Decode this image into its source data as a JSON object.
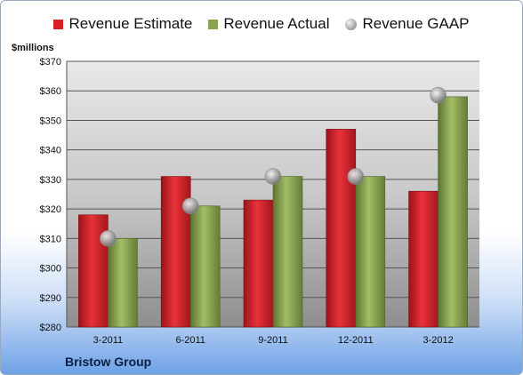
{
  "chart_data": {
    "type": "bar",
    "categories": [
      "3-2011",
      "6-2011",
      "9-2011",
      "12-2011",
      "3-2012"
    ],
    "series": [
      {
        "name": "Revenue Estimate",
        "values": [
          318,
          331,
          323,
          347,
          326
        ],
        "color": "#d42027"
      },
      {
        "name": "Revenue Actual",
        "values": [
          310,
          321,
          331,
          331,
          358
        ],
        "color": "#8aa353"
      }
    ],
    "markers": {
      "name": "Revenue GAAP",
      "values": [
        310,
        321,
        331,
        331,
        358.5
      ],
      "color": "#b0b0b0"
    },
    "ylabel": "$millions",
    "ylim": [
      280,
      370
    ],
    "yticks": [
      280,
      290,
      300,
      310,
      320,
      330,
      340,
      350,
      360,
      370
    ],
    "ytick_labels": [
      "$280",
      "$290",
      "$300",
      "$310",
      "$320",
      "$330",
      "$340",
      "$350",
      "$360",
      "$370"
    ],
    "grid": true,
    "legend": "top"
  },
  "footer": {
    "company": "Bristow Group"
  }
}
